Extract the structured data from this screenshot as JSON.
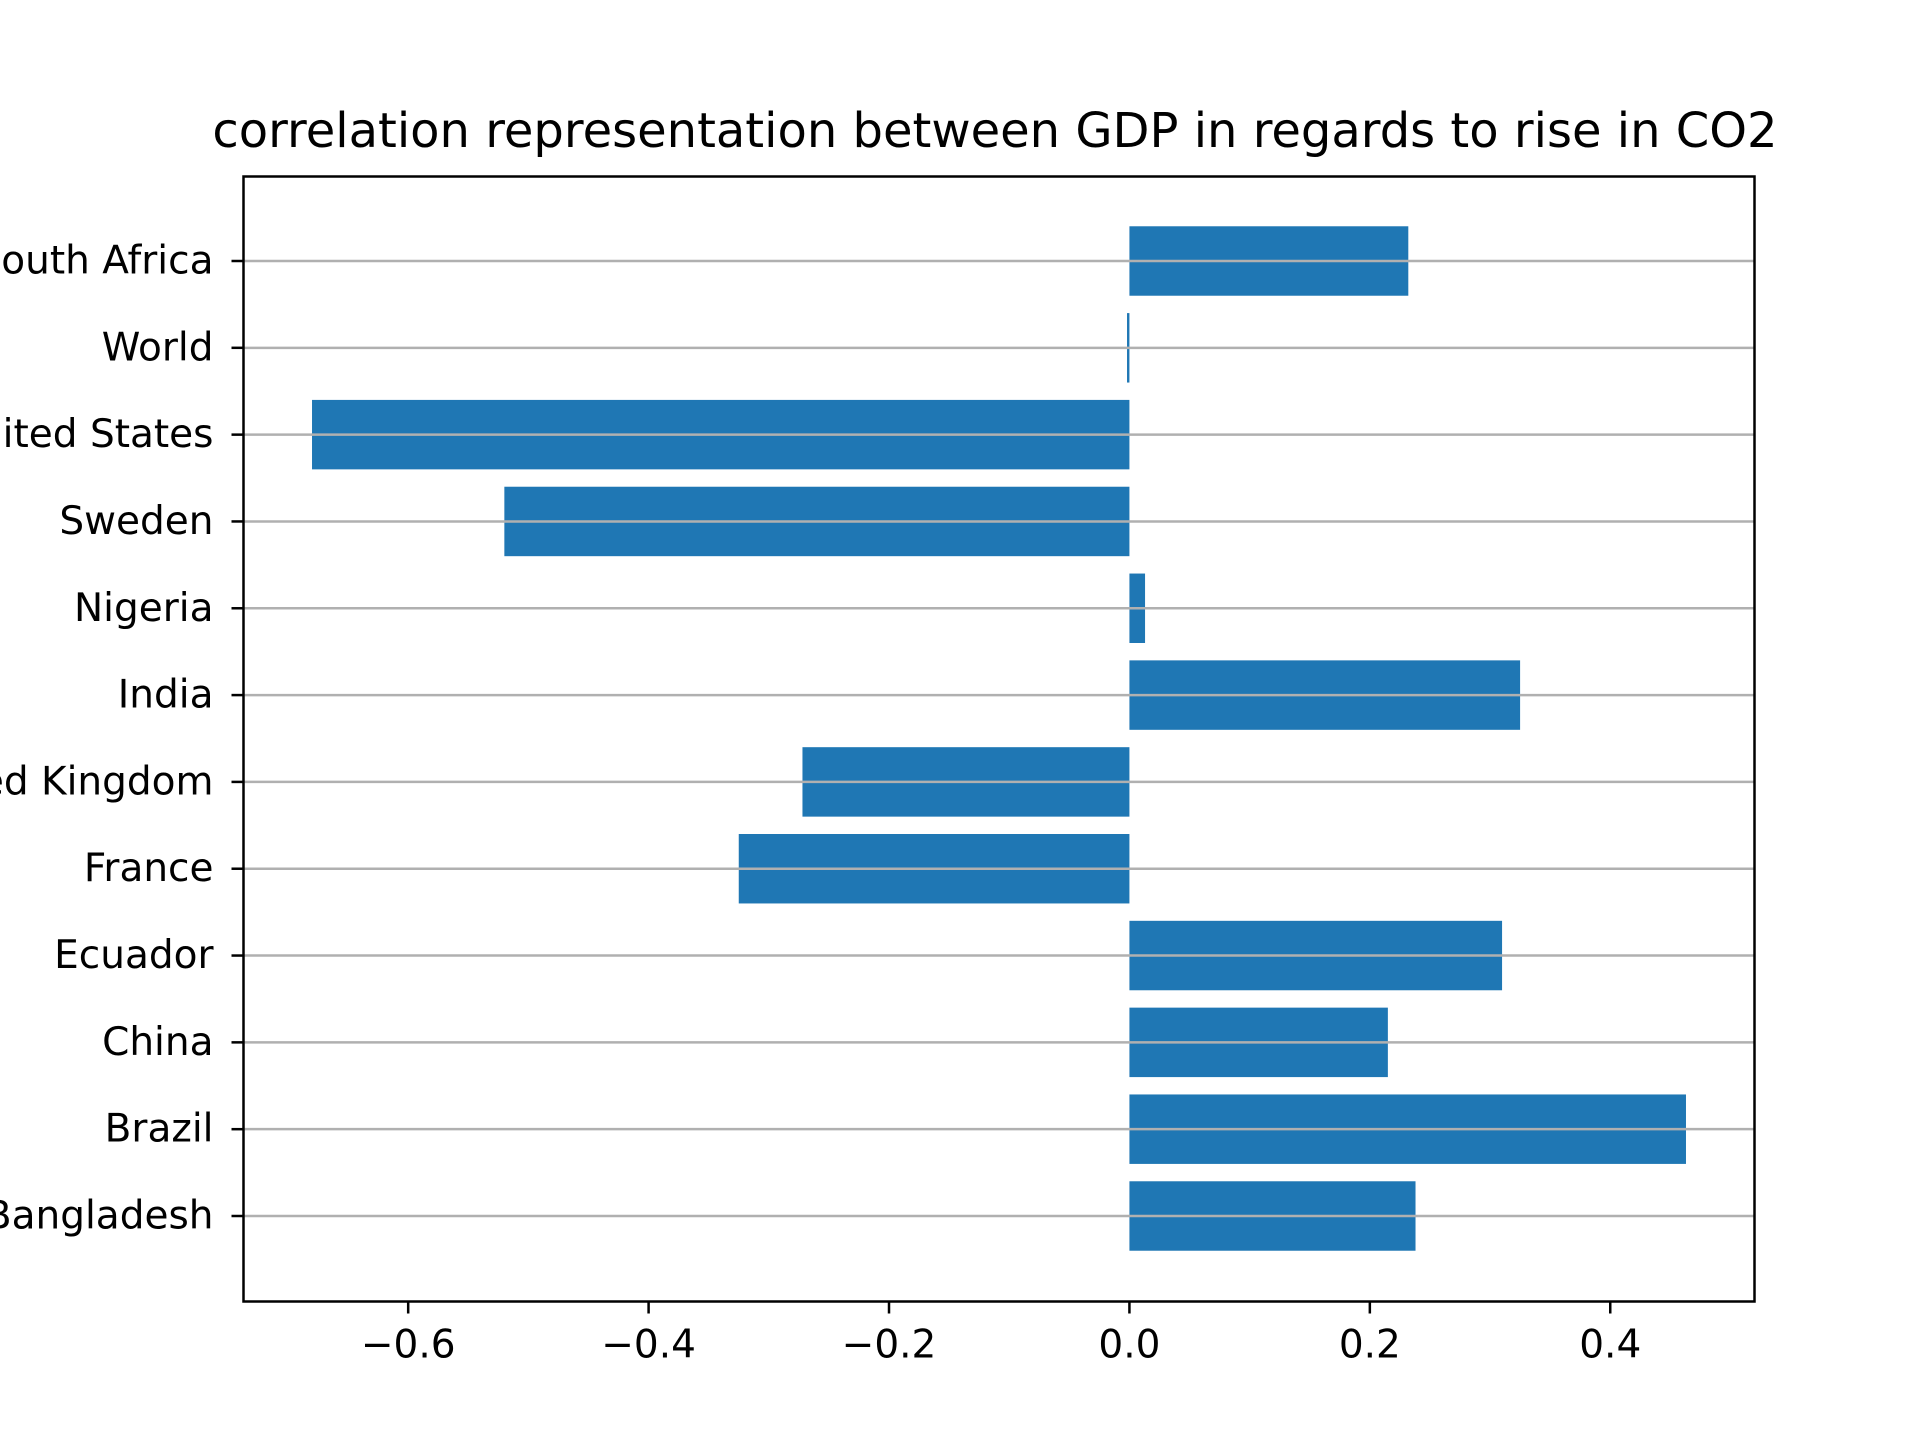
{
  "chart_data": {
    "type": "bar",
    "orientation": "horizontal",
    "title": "correlation representation between GDP in regards to rise in CO2",
    "xlabel": "",
    "ylabel": "",
    "categories": [
      "South Africa",
      "World",
      "United States",
      "Sweden",
      "Nigeria",
      "India",
      "United Kingdom",
      "France",
      "Ecuador",
      "China",
      "Brazil",
      "Bangladesh"
    ],
    "values": [
      0.232,
      -0.002,
      -0.68,
      -0.52,
      0.013,
      0.325,
      -0.272,
      -0.325,
      0.31,
      0.215,
      0.463,
      0.238
    ],
    "xlim": [
      -0.737,
      0.52
    ],
    "xticks": [
      -0.6,
      -0.4,
      -0.2,
      0.0,
      0.2,
      0.4
    ],
    "xtick_labels": [
      "−0.6",
      "−0.4",
      "−0.2",
      "0.0",
      "0.2",
      "0.4"
    ],
    "grid": "horizontal lines at each category",
    "colors": {
      "bar": "#1f77b4",
      "grid": "#b0b0b0",
      "axes": "#000000"
    }
  }
}
